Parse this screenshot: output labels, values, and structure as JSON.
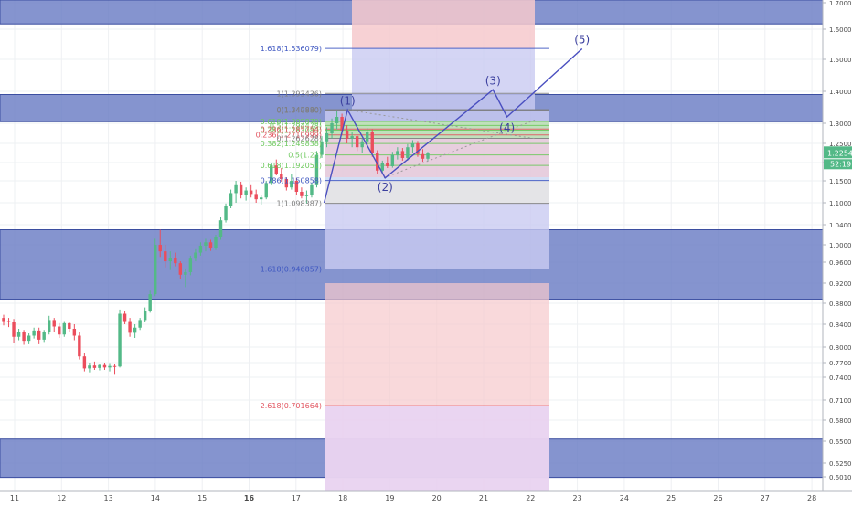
{
  "chart_data": {
    "type": "candlestick",
    "x_ticks": [
      "11",
      "12",
      "13",
      "14",
      "15",
      "16",
      "17",
      "18",
      "19",
      "20",
      "21",
      "22",
      "23",
      "24",
      "25",
      "26",
      "27",
      "28"
    ],
    "y_ticks": [
      "1.700000",
      "1.600000",
      "1.500000",
      "1.400000",
      "1.300000",
      "1.250000",
      "1.200000",
      "1.150000",
      "1.100000",
      "1.040000",
      "1.000000",
      "0.960000",
      "0.920000",
      "0.880000",
      "0.840000",
      "0.800000",
      "0.770000",
      "0.740000",
      "0.710000",
      "0.680000",
      "0.650000",
      "0.625000",
      "0.601000"
    ],
    "last_price": "1.225483",
    "countdown": "52:19",
    "colors": {
      "up": "#53b987",
      "down": "#eb4d5c",
      "band": "#6a7dc4",
      "wave": "#4a4fc0",
      "fib_red": "#e25560",
      "fib_green": "#6ec95e",
      "fib_gray": "#7f7f7f",
      "fib_blue": "#3e57c1"
    },
    "horizontal_bands": [
      {
        "top": 1.73,
        "bottom": 1.62
      },
      {
        "top": 1.39,
        "bottom": 1.305
      },
      {
        "top": 1.03,
        "bottom": 0.888
      },
      {
        "top": 0.653,
        "bottom": 0.6
      }
    ],
    "candles": [
      {
        "o": 0.852,
        "h": 0.858,
        "l": 0.838,
        "c": 0.846
      },
      {
        "o": 0.846,
        "h": 0.852,
        "l": 0.835,
        "c": 0.844
      },
      {
        "o": 0.844,
        "h": 0.85,
        "l": 0.808,
        "c": 0.818
      },
      {
        "o": 0.818,
        "h": 0.832,
        "l": 0.812,
        "c": 0.827
      },
      {
        "o": 0.827,
        "h": 0.83,
        "l": 0.804,
        "c": 0.811
      },
      {
        "o": 0.811,
        "h": 0.824,
        "l": 0.805,
        "c": 0.82
      },
      {
        "o": 0.82,
        "h": 0.834,
        "l": 0.815,
        "c": 0.829
      },
      {
        "o": 0.829,
        "h": 0.834,
        "l": 0.805,
        "c": 0.813
      },
      {
        "o": 0.813,
        "h": 0.83,
        "l": 0.809,
        "c": 0.826
      },
      {
        "o": 0.826,
        "h": 0.856,
        "l": 0.822,
        "c": 0.848
      },
      {
        "o": 0.848,
        "h": 0.852,
        "l": 0.826,
        "c": 0.836
      },
      {
        "o": 0.836,
        "h": 0.842,
        "l": 0.816,
        "c": 0.822
      },
      {
        "o": 0.822,
        "h": 0.846,
        "l": 0.818,
        "c": 0.842
      },
      {
        "o": 0.842,
        "h": 0.845,
        "l": 0.826,
        "c": 0.832
      },
      {
        "o": 0.832,
        "h": 0.84,
        "l": 0.812,
        "c": 0.82
      },
      {
        "o": 0.82,
        "h": 0.826,
        "l": 0.776,
        "c": 0.782
      },
      {
        "o": 0.782,
        "h": 0.788,
        "l": 0.752,
        "c": 0.758
      },
      {
        "o": 0.758,
        "h": 0.77,
        "l": 0.75,
        "c": 0.764
      },
      {
        "o": 0.764,
        "h": 0.772,
        "l": 0.755,
        "c": 0.759
      },
      {
        "o": 0.759,
        "h": 0.768,
        "l": 0.754,
        "c": 0.765
      },
      {
        "o": 0.765,
        "h": 0.77,
        "l": 0.755,
        "c": 0.76
      },
      {
        "o": 0.76,
        "h": 0.769,
        "l": 0.752,
        "c": 0.763
      },
      {
        "o": 0.763,
        "h": 0.768,
        "l": 0.745,
        "c": 0.762
      },
      {
        "o": 0.762,
        "h": 0.868,
        "l": 0.76,
        "c": 0.86
      },
      {
        "o": 0.86,
        "h": 0.866,
        "l": 0.84,
        "c": 0.846
      },
      {
        "o": 0.846,
        "h": 0.852,
        "l": 0.818,
        "c": 0.825
      },
      {
        "o": 0.825,
        "h": 0.84,
        "l": 0.816,
        "c": 0.834
      },
      {
        "o": 0.834,
        "h": 0.852,
        "l": 0.83,
        "c": 0.848
      },
      {
        "o": 0.848,
        "h": 0.872,
        "l": 0.844,
        "c": 0.866
      },
      {
        "o": 0.866,
        "h": 0.905,
        "l": 0.862,
        "c": 0.898
      },
      {
        "o": 0.898,
        "h": 1.012,
        "l": 0.894,
        "c": 1.0
      },
      {
        "o": 1.0,
        "h": 1.03,
        "l": 0.972,
        "c": 0.985
      },
      {
        "o": 0.985,
        "h": 1.0,
        "l": 0.95,
        "c": 0.962
      },
      {
        "o": 0.962,
        "h": 0.985,
        "l": 0.945,
        "c": 0.97
      },
      {
        "o": 0.97,
        "h": 0.982,
        "l": 0.952,
        "c": 0.958
      },
      {
        "o": 0.958,
        "h": 0.962,
        "l": 0.928,
        "c": 0.936
      },
      {
        "o": 0.936,
        "h": 0.948,
        "l": 0.912,
        "c": 0.941
      },
      {
        "o": 0.941,
        "h": 0.975,
        "l": 0.935,
        "c": 0.968
      },
      {
        "o": 0.968,
        "h": 0.99,
        "l": 0.962,
        "c": 0.982
      },
      {
        "o": 0.982,
        "h": 1.005,
        "l": 0.975,
        "c": 0.998
      },
      {
        "o": 0.998,
        "h": 1.012,
        "l": 0.985,
        "c": 1.005
      },
      {
        "o": 1.005,
        "h": 1.01,
        "l": 0.986,
        "c": 0.992
      },
      {
        "o": 0.992,
        "h": 1.02,
        "l": 0.988,
        "c": 1.015
      },
      {
        "o": 1.015,
        "h": 1.06,
        "l": 1.01,
        "c": 1.052
      },
      {
        "o": 1.052,
        "h": 1.098,
        "l": 1.046,
        "c": 1.092
      },
      {
        "o": 1.092,
        "h": 1.13,
        "l": 1.085,
        "c": 1.122
      },
      {
        "o": 1.122,
        "h": 1.15,
        "l": 1.1,
        "c": 1.14
      },
      {
        "o": 1.14,
        "h": 1.148,
        "l": 1.11,
        "c": 1.118
      },
      {
        "o": 1.118,
        "h": 1.135,
        "l": 1.105,
        "c": 1.128
      },
      {
        "o": 1.128,
        "h": 1.14,
        "l": 1.112,
        "c": 1.12
      },
      {
        "o": 1.12,
        "h": 1.13,
        "l": 1.1,
        "c": 1.108
      },
      {
        "o": 1.108,
        "h": 1.118,
        "l": 1.095,
        "c": 1.112
      },
      {
        "o": 1.112,
        "h": 1.15,
        "l": 1.108,
        "c": 1.145
      },
      {
        "o": 1.145,
        "h": 1.2,
        "l": 1.14,
        "c": 1.192
      },
      {
        "o": 1.192,
        "h": 1.208,
        "l": 1.165,
        "c": 1.17
      },
      {
        "o": 1.17,
        "h": 1.185,
        "l": 1.148,
        "c": 1.155
      },
      {
        "o": 1.155,
        "h": 1.16,
        "l": 1.128,
        "c": 1.135
      },
      {
        "o": 1.135,
        "h": 1.168,
        "l": 1.13,
        "c": 1.15
      },
      {
        "o": 1.15,
        "h": 1.158,
        "l": 1.118,
        "c": 1.125
      },
      {
        "o": 1.125,
        "h": 1.135,
        "l": 1.11,
        "c": 1.115
      },
      {
        "o": 1.115,
        "h": 1.128,
        "l": 1.098,
        "c": 1.118
      },
      {
        "o": 1.118,
        "h": 1.145,
        "l": 1.112,
        "c": 1.14
      },
      {
        "o": 1.14,
        "h": 1.23,
        "l": 1.135,
        "c": 1.22
      },
      {
        "o": 1.22,
        "h": 1.268,
        "l": 1.212,
        "c": 1.255
      },
      {
        "o": 1.255,
        "h": 1.29,
        "l": 1.24,
        "c": 1.275
      },
      {
        "o": 1.275,
        "h": 1.315,
        "l": 1.262,
        "c": 1.3
      },
      {
        "o": 1.3,
        "h": 1.34,
        "l": 1.285,
        "c": 1.32
      },
      {
        "o": 1.32,
        "h": 1.33,
        "l": 1.27,
        "c": 1.282
      },
      {
        "o": 1.282,
        "h": 1.295,
        "l": 1.25,
        "c": 1.262
      },
      {
        "o": 1.262,
        "h": 1.278,
        "l": 1.24,
        "c": 1.268
      },
      {
        "o": 1.268,
        "h": 1.272,
        "l": 1.23,
        "c": 1.24
      },
      {
        "o": 1.24,
        "h": 1.262,
        "l": 1.225,
        "c": 1.255
      },
      {
        "o": 1.255,
        "h": 1.288,
        "l": 1.245,
        "c": 1.278
      },
      {
        "o": 1.278,
        "h": 1.285,
        "l": 1.215,
        "c": 1.225
      },
      {
        "o": 1.225,
        "h": 1.232,
        "l": 1.168,
        "c": 1.178
      },
      {
        "o": 1.178,
        "h": 1.205,
        "l": 1.17,
        "c": 1.198
      },
      {
        "o": 1.198,
        "h": 1.215,
        "l": 1.185,
        "c": 1.19
      },
      {
        "o": 1.19,
        "h": 1.228,
        "l": 1.186,
        "c": 1.22
      },
      {
        "o": 1.22,
        "h": 1.24,
        "l": 1.208,
        "c": 1.23
      },
      {
        "o": 1.23,
        "h": 1.238,
        "l": 1.205,
        "c": 1.212
      },
      {
        "o": 1.212,
        "h": 1.248,
        "l": 1.205,
        "c": 1.24
      },
      {
        "o": 1.24,
        "h": 1.258,
        "l": 1.226,
        "c": 1.25
      },
      {
        "o": 1.25,
        "h": 1.256,
        "l": 1.215,
        "c": 1.222
      },
      {
        "o": 1.222,
        "h": 1.235,
        "l": 1.202,
        "c": 1.21
      },
      {
        "o": 1.21,
        "h": 1.228,
        "l": 1.205,
        "c": 1.225
      }
    ],
    "fib_retracement": {
      "levels": [
        {
          "label": "1(1.393436)",
          "price": 1.393436,
          "color": "#7f7f7f"
        },
        {
          "label": "0(1.342880)",
          "price": 1.34288,
          "color": "#7f7f7f"
        },
        {
          "label": "0.618(1.305870)",
          "price": 1.30587,
          "color": "#6ec95e"
        },
        {
          "label": "0.5(1.294478)",
          "price": 1.294478,
          "color": "#6ec95e"
        },
        {
          "label": "0.382(1.283080)",
          "price": 1.28308,
          "color": "#6ec95e"
        },
        {
          "label": "0.236(1.2710999)",
          "price": 1.2710999,
          "color": "#e25560"
        },
        {
          "label": "0(1.262628)",
          "price": 1.262628,
          "color": "#7f7f7f"
        }
      ]
    },
    "fib_extension": {
      "levels": [
        {
          "label": "1.618(1.536079)",
          "price": 1.536079,
          "color": "#3e57c1"
        },
        {
          "label": "0(1.340880)",
          "price": 1.34088,
          "color": "#7f7f7f"
        },
        {
          "label": "0.236(1.285754)",
          "price": 1.285754,
          "color": "#e25560"
        },
        {
          "label": "0.382(1.249838)",
          "price": 1.249838,
          "color": "#6ec95e"
        },
        {
          "label": "0.5(1.22)",
          "price": 1.22,
          "color": "#6ec95e"
        },
        {
          "label": "0.618(1.192051)",
          "price": 1.192051,
          "color": "#6ec95e"
        },
        {
          "label": "0.786(1.150858)",
          "price": 1.150858,
          "color": "#3e57c1"
        },
        {
          "label": "1(1.098387)",
          "price": 1.098387,
          "color": "#7f7f7f"
        },
        {
          "label": "1.618(0.946857)",
          "price": 0.946857,
          "color": "#3e57c1"
        },
        {
          "label": "2.618(0.701664)",
          "price": 0.701664,
          "color": "#e25560"
        }
      ]
    },
    "elliott_wave": {
      "points": [
        {
          "label": "",
          "day": 17.6,
          "price": 1.1
        },
        {
          "label": "(1)",
          "day": 18.1,
          "price": 1.342
        },
        {
          "label": "(2)",
          "day": 18.9,
          "price": 1.158
        },
        {
          "label": "(3)",
          "day": 21.2,
          "price": 1.405
        },
        {
          "label": "(4)",
          "day": 21.5,
          "price": 1.32
        },
        {
          "label": "(5)",
          "day": 23.1,
          "price": 1.535
        }
      ]
    }
  }
}
